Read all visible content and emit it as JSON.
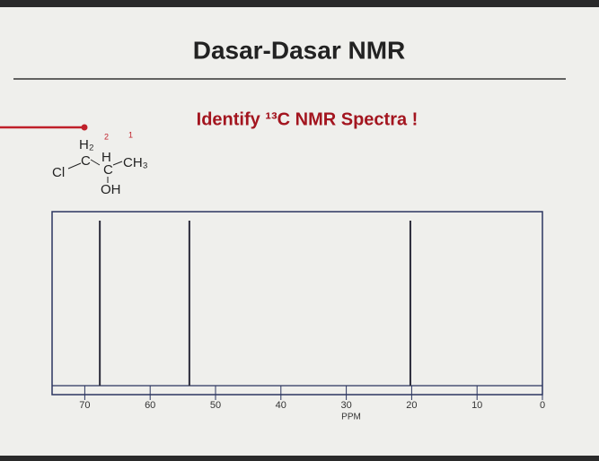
{
  "slide": {
    "title": "Dasar-Dasar NMR",
    "subtitle": "Identify ¹³C NMR Spectra !"
  },
  "molecule": {
    "labels": [
      "H₂",
      "Cl",
      "C",
      "H",
      "CH₃",
      "C",
      "OH"
    ],
    "annotations": [
      "2",
      "1"
    ]
  },
  "chart_data": {
    "type": "spectrum",
    "xlabel": "PPM",
    "peaks": [
      67.7,
      54,
      20.2
    ],
    "color": "#2b2b3a",
    "xlim": [
      75,
      0
    ],
    "xticks": [
      70,
      60,
      50,
      40,
      30,
      20,
      10,
      0
    ]
  }
}
